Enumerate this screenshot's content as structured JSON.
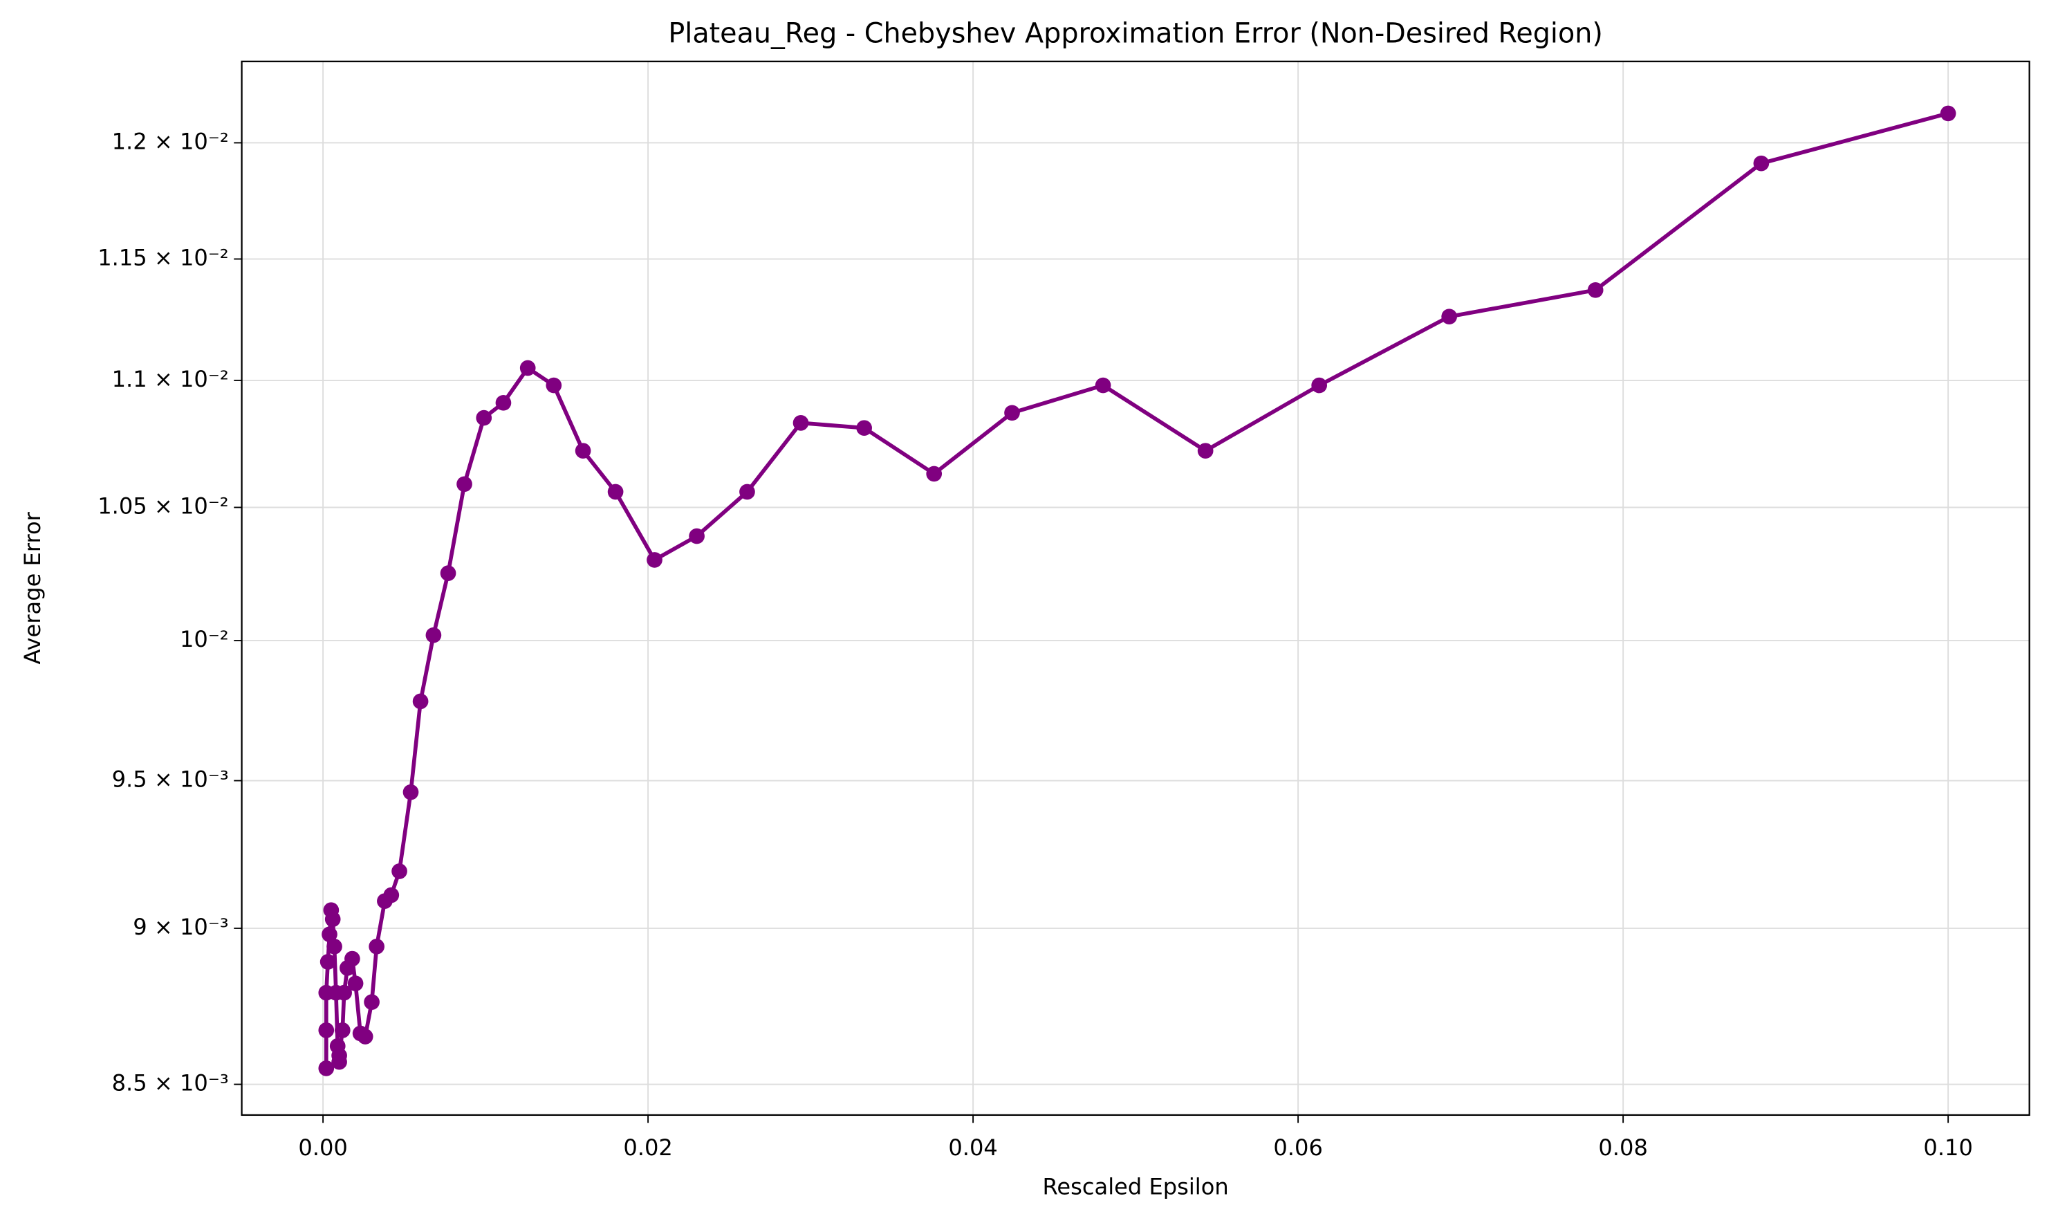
{
  "chart_data": {
    "type": "line",
    "title": "Plateau_Reg - Chebyshev Approximation Error (Non-Desired Region)",
    "x_label": "Rescaled Epsilon",
    "y_label": "Average Error",
    "log_y": true,
    "grid": true,
    "x": [
      0.0002,
      0.0002,
      0.0002,
      0.0003,
      0.0004,
      0.0005,
      0.0006,
      0.0007,
      0.0008,
      0.0009,
      0.001,
      0.001,
      0.0012,
      0.0013,
      0.0015,
      0.0018,
      0.002,
      0.0023,
      0.0026,
      0.003,
      0.0033,
      0.0038,
      0.0042,
      0.0047,
      0.0054,
      0.006,
      0.0068,
      0.0077,
      0.0087,
      0.0099,
      0.0111,
      0.0126,
      0.0142,
      0.016,
      0.018,
      0.0204,
      0.023,
      0.0261,
      0.0294,
      0.0333,
      0.0376,
      0.0424,
      0.048,
      0.0543,
      0.0613,
      0.0693,
      0.0783,
      0.0885,
      0.1
    ],
    "series": [
      {
        "color": "#800080",
        "values": [
          0.00855,
          0.00867,
          0.00879,
          0.00889,
          0.00898,
          0.00906,
          0.00903,
          0.00894,
          0.00879,
          0.00862,
          0.00857,
          0.00859,
          0.00867,
          0.00879,
          0.00887,
          0.0089,
          0.00882,
          0.00866,
          0.00865,
          0.00876,
          0.00894,
          0.00909,
          0.00911,
          0.00919,
          0.00946,
          0.00978,
          0.01002,
          0.01025,
          0.01059,
          0.01085,
          0.01091,
          0.01105,
          0.01098,
          0.01072,
          0.01056,
          0.0103,
          0.01039,
          0.01056,
          0.01083,
          0.01081,
          0.01063,
          0.01087,
          0.01098,
          0.01072,
          0.01098,
          0.01126,
          0.01137,
          0.01191,
          0.01213
        ]
      }
    ],
    "xlim": [
      -0.005,
      0.105
    ],
    "xticks": [
      {
        "value": 0,
        "label": "0.00"
      },
      0.02,
      0.04,
      0.06,
      0.08,
      {
        "value": 0.1,
        "label": "0.10"
      }
    ],
    "ylim": [
      0.008405,
      0.012363
    ],
    "yticks": [
      {
        "value": 0.0085,
        "label": "8.5 × 10⁻³"
      },
      {
        "value": 0.009,
        "label": "9 × 10⁻³"
      },
      {
        "value": 0.0095,
        "label": "9.5 × 10⁻³"
      },
      {
        "value": 0.01,
        "label": "10⁻²"
      },
      {
        "value": 0.0105,
        "label": "1.05 × 10⁻²"
      },
      {
        "value": 0.011,
        "label": "1.1 × 10⁻²"
      },
      {
        "value": 0.0115,
        "label": "1.15 × 10⁻²"
      },
      {
        "value": 0.012,
        "label": "1.2 × 10⁻²"
      }
    ]
  }
}
